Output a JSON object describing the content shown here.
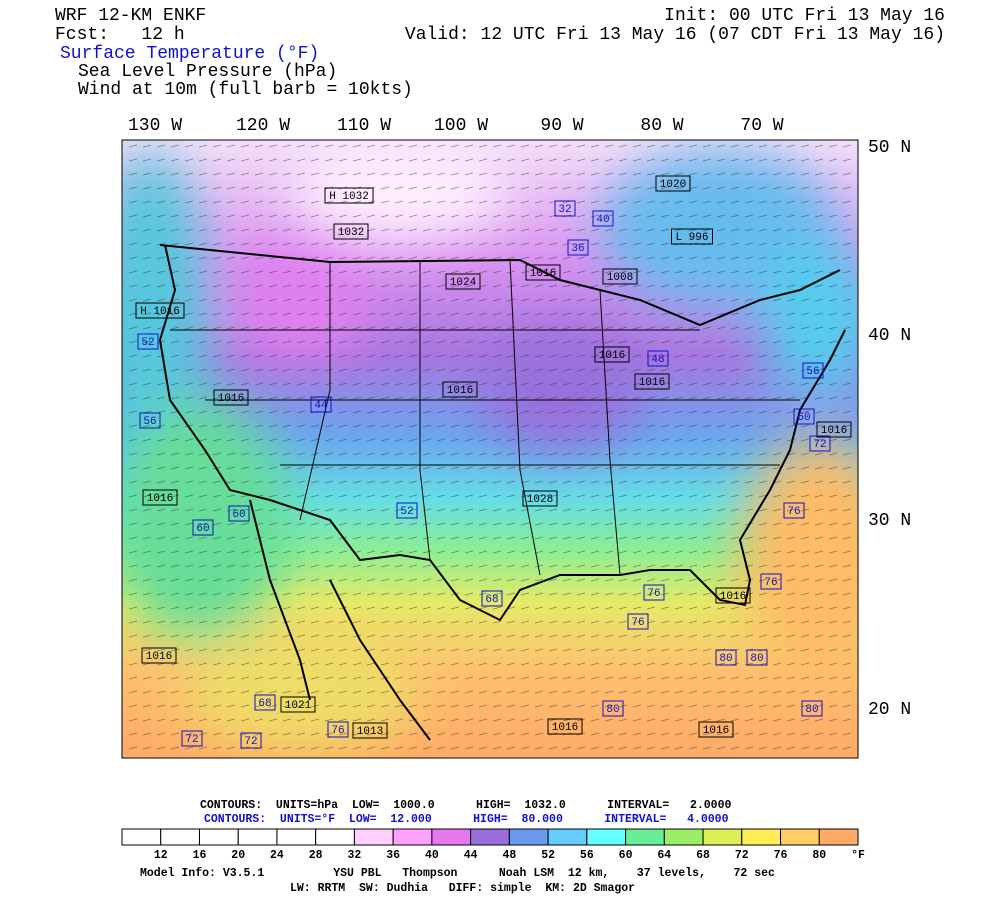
{
  "header": {
    "model": "WRF 12-KM ENKF",
    "forecast": "Fcst:   12 h",
    "init": "Init: 00 UTC Fri 13 May 16",
    "valid": "Valid: 12 UTC Fri 13 May 16 (07 CDT Fri 13 May 16)",
    "fields": [
      "Surface Temperature (°F)",
      "Sea Level Pressure (hPa)",
      "Wind at 10m (full barb = 10kts)"
    ]
  },
  "axes": {
    "longitudes": [
      "130 W",
      "120 W",
      "110 W",
      "100 W",
      "90 W",
      "80 W",
      "70 W"
    ],
    "latitudes": [
      "50 N",
      "40 N",
      "30 N",
      "20 N"
    ]
  },
  "map_labels": {
    "pressure": [
      "H 1032",
      "1032",
      "1024",
      "1016",
      "1008",
      "1016",
      "1016",
      "1016",
      "H 1016",
      "1016",
      "1016",
      "1016",
      "1021",
      "1013",
      "1016",
      "1016",
      "1016",
      "1016",
      "1020",
      "L 996",
      "1028"
    ],
    "temperature": [
      "32",
      "40",
      "36",
      "48",
      "52",
      "56",
      "44",
      "60",
      "60",
      "52",
      "68",
      "76",
      "76",
      "80",
      "80",
      "80",
      "80",
      "68",
      "76",
      "72",
      "72",
      "56",
      "60",
      "72",
      "76",
      "76"
    ]
  },
  "contours": {
    "pressure": "CONTOURS:  UNITS=hPa  LOW=  1000.0      HIGH=  1032.0      INTERVAL=   2.0000",
    "temperature": "CONTOURS:  UNITS=°F  LOW=  12.000      HIGH=  80.000      INTERVAL=   4.0000"
  },
  "colorbar": {
    "colors": [
      "#ffffff",
      "#ffffff",
      "#ffffff",
      "#ffffff",
      "#ffffff",
      "#ffffff",
      "#ffd0ff",
      "#ffa0ff",
      "#e878f0",
      "#9b6ede",
      "#6a9aee",
      "#66ccff",
      "#66ffff",
      "#66ee99",
      "#99ee66",
      "#ddee55",
      "#ffee55",
      "#ffcc66",
      "#ffaa66"
    ],
    "ticks": [
      12,
      16,
      20,
      24,
      28,
      32,
      36,
      40,
      44,
      48,
      52,
      56,
      60,
      64,
      68,
      72,
      76,
      80
    ],
    "unit": "°F"
  },
  "model_info": [
    "Model Info: V3.5.1          YSU PBL   Thompson      Noah LSM  12 km,    37 levels,    72 sec",
    "LW: RRTM  SW: Dudhia   DIFF: simple  KM: 2D Smagor"
  ]
}
